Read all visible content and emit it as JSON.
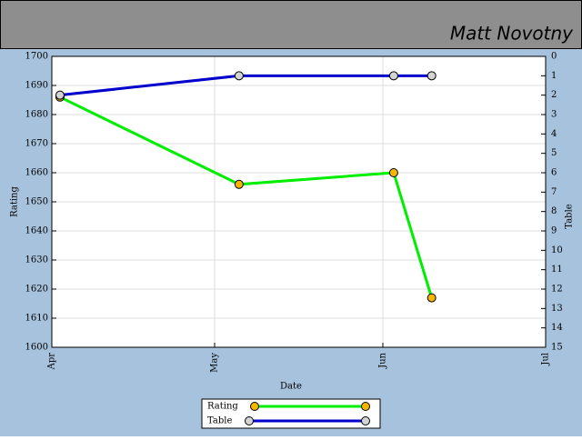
{
  "header": {
    "name": "Matt Novotny"
  },
  "chart_data": {
    "type": "line",
    "x_label": "Date",
    "y_label": "Rating",
    "y2_label": "Table",
    "x": [
      1.5,
      34.5,
      63,
      70
    ],
    "xlim": [
      0,
      91
    ],
    "xticks": [
      {
        "value": 0,
        "label": "Apr"
      },
      {
        "value": 30,
        "label": "May"
      },
      {
        "value": 61,
        "label": "Jun"
      },
      {
        "value": 91,
        "label": "Jul"
      }
    ],
    "ylim": [
      1600,
      1700
    ],
    "yticks": [
      1600,
      1610,
      1620,
      1630,
      1640,
      1650,
      1660,
      1670,
      1680,
      1690,
      1700
    ],
    "y2lim": [
      15,
      0
    ],
    "y2ticks": [
      0,
      1,
      2,
      3,
      4,
      5,
      6,
      7,
      8,
      9,
      10,
      11,
      12,
      13,
      14,
      15
    ],
    "grid": true,
    "legend": "bottom",
    "series": [
      {
        "name": "Rating",
        "color": "#00ee00",
        "marker_color": "#f7b500",
        "values": [
          1686,
          1656,
          1660,
          1617
        ]
      },
      {
        "name": "Table",
        "color": "#0000cc",
        "marker_color": "#d4d4d4",
        "axis": "y2",
        "values": [
          2,
          1,
          1,
          1
        ]
      }
    ]
  }
}
